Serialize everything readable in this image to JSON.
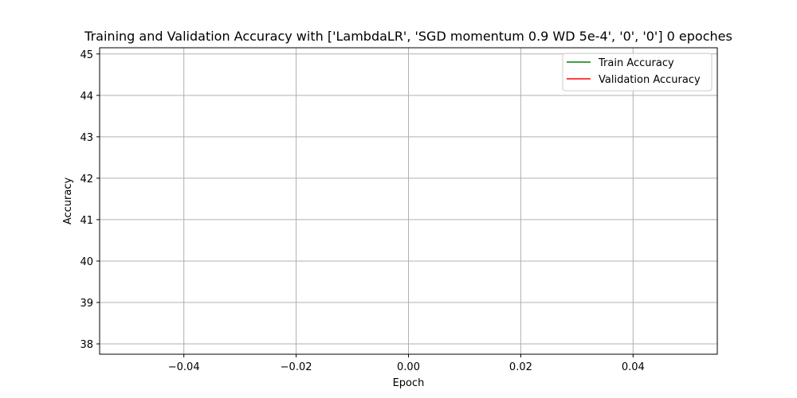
{
  "chart_data": {
    "type": "line",
    "title": "Training and Validation Accuracy with ['LambdaLR', 'SGD momentum 0.9 WD 5e-4', '0', '0'] 0 epoches",
    "xlabel": "Epoch",
    "ylabel": "Accuracy",
    "xlim": [
      -0.055,
      0.055
    ],
    "ylim": [
      37.75,
      45.15
    ],
    "x_ticks": [
      -0.04,
      -0.02,
      0.0,
      0.02,
      0.04
    ],
    "x_tick_labels": [
      "−0.04",
      "−0.02",
      "0.00",
      "0.02",
      "0.04"
    ],
    "y_ticks": [
      38,
      39,
      40,
      41,
      42,
      43,
      44,
      45
    ],
    "y_tick_labels": [
      "38",
      "39",
      "40",
      "41",
      "42",
      "43",
      "44",
      "45"
    ],
    "grid": true,
    "legend_position": "top-right",
    "series": [
      {
        "name": "Train Accuracy",
        "color": "#008000",
        "x": [],
        "y": []
      },
      {
        "name": "Validation Accuracy",
        "color": "#ff0000",
        "x": [],
        "y": []
      }
    ]
  }
}
